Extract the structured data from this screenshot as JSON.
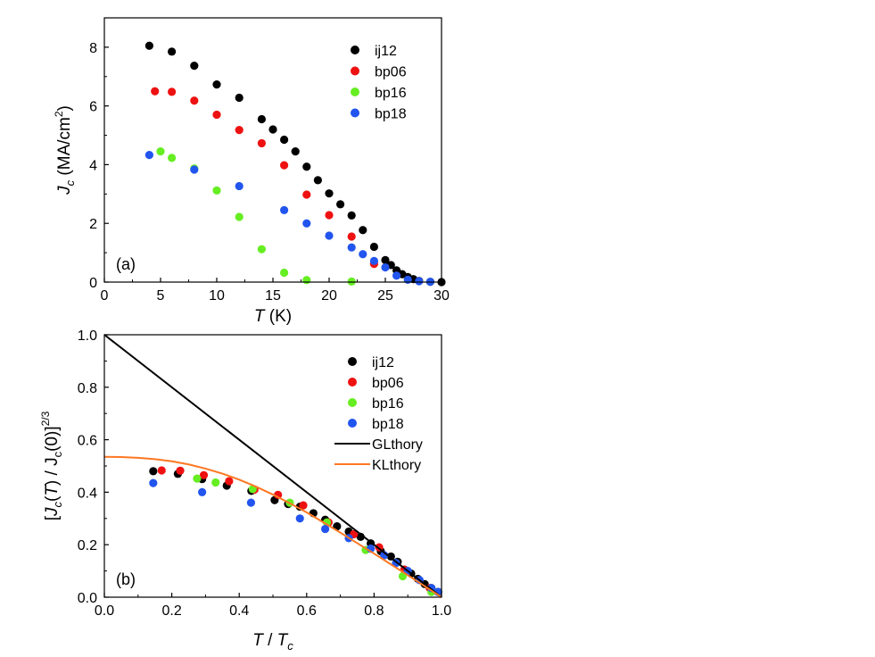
{
  "chart_data": [
    {
      "type": "scatter",
      "panel_label": "(a)",
      "xlabel": "T (K)",
      "ylabel": "Jc (MA/cm2)",
      "xlim": [
        0,
        30
      ],
      "ylim": [
        0,
        9
      ],
      "xticks": [
        0,
        5,
        10,
        15,
        20,
        25,
        30
      ],
      "yticks": [
        0,
        2,
        4,
        6,
        8
      ],
      "legend_position": "top-right",
      "series": [
        {
          "name": "ij12",
          "color": "#000000",
          "x": [
            4,
            6,
            8,
            10,
            12,
            14,
            15,
            16,
            17,
            18,
            19,
            20,
            21,
            22,
            23,
            24,
            25,
            25.5,
            26,
            26.5,
            27,
            27.5,
            28,
            29,
            30
          ],
          "y": [
            8.05,
            7.85,
            7.37,
            6.73,
            6.28,
            5.55,
            5.2,
            4.85,
            4.45,
            3.93,
            3.47,
            3.02,
            2.65,
            2.27,
            1.77,
            1.2,
            0.75,
            0.58,
            0.4,
            0.27,
            0.17,
            0.1,
            0.04,
            0.01,
            0.0
          ]
        },
        {
          "name": "bp06",
          "color": "#ee1111",
          "x": [
            4.5,
            6,
            8,
            10,
            12,
            14,
            16,
            18,
            20,
            22,
            24
          ],
          "y": [
            6.5,
            6.48,
            6.18,
            5.7,
            5.18,
            4.73,
            3.98,
            2.98,
            2.28,
            1.55,
            0.62
          ]
        },
        {
          "name": "bp16",
          "color": "#66ee22",
          "x": [
            5,
            6,
            8,
            10,
            12,
            14,
            16,
            18,
            22
          ],
          "y": [
            4.45,
            4.23,
            3.87,
            3.12,
            2.22,
            1.12,
            0.32,
            0.07,
            0.02
          ]
        },
        {
          "name": "bp18",
          "color": "#2255ee",
          "x": [
            4,
            8,
            12,
            16,
            18,
            20,
            22,
            23,
            24,
            25,
            26,
            27,
            28,
            29
          ],
          "y": [
            4.33,
            3.83,
            3.27,
            2.45,
            2.0,
            1.58,
            1.18,
            0.95,
            0.72,
            0.5,
            0.22,
            0.08,
            0.03,
            0.01
          ]
        }
      ]
    },
    {
      "type": "scatter",
      "panel_label": "(b)",
      "xlabel": "T / Tc",
      "ylabel": "[Jc(T) / Jc(0)]2/3",
      "xlim": [
        0.0,
        1.0
      ],
      "ylim": [
        0.0,
        1.0
      ],
      "xticks": [
        0.0,
        0.2,
        0.4,
        0.6,
        0.8,
        1.0
      ],
      "yticks": [
        0.0,
        0.2,
        0.4,
        0.6,
        0.8,
        1.0
      ],
      "legend_position": "top-right",
      "series": [
        {
          "name": "ij12",
          "color": "#000000",
          "x": [
            0.145,
            0.218,
            0.29,
            0.363,
            0.436,
            0.505,
            0.545,
            0.58,
            0.62,
            0.655,
            0.69,
            0.725,
            0.76,
            0.79,
            0.82,
            0.85,
            0.87,
            0.89,
            0.91,
            0.93,
            0.95,
            0.97,
            0.99
          ],
          "y": [
            0.48,
            0.47,
            0.45,
            0.425,
            0.405,
            0.37,
            0.355,
            0.345,
            0.32,
            0.295,
            0.27,
            0.25,
            0.23,
            0.205,
            0.175,
            0.155,
            0.135,
            0.105,
            0.09,
            0.07,
            0.05,
            0.035,
            0.02
          ]
        },
        {
          "name": "bp06",
          "color": "#ee1111",
          "x": [
            0.17,
            0.225,
            0.295,
            0.37,
            0.445,
            0.515,
            0.59,
            0.665,
            0.74,
            0.815,
            0.89,
            0.965
          ],
          "y": [
            0.483,
            0.482,
            0.465,
            0.442,
            0.41,
            0.39,
            0.35,
            0.285,
            0.24,
            0.19,
            0.105,
            0.035
          ]
        },
        {
          "name": "bp16",
          "color": "#66ee22",
          "x": [
            0.275,
            0.33,
            0.44,
            0.55,
            0.66,
            0.775,
            0.885,
            0.97
          ],
          "y": [
            0.452,
            0.437,
            0.412,
            0.36,
            0.285,
            0.18,
            0.08,
            0.02
          ]
        },
        {
          "name": "bp18",
          "color": "#2255ee",
          "x": [
            0.145,
            0.29,
            0.435,
            0.58,
            0.655,
            0.725,
            0.79,
            0.83,
            0.865,
            0.9,
            0.935,
            0.97,
            0.99
          ],
          "y": [
            0.435,
            0.4,
            0.36,
            0.3,
            0.26,
            0.225,
            0.185,
            0.16,
            0.13,
            0.1,
            0.065,
            0.035,
            0.02
          ]
        },
        {
          "name": "GLthory",
          "color": "#000000",
          "kind": "line",
          "x": [
            0.0,
            1.0
          ],
          "y": [
            1.0,
            0.0
          ]
        },
        {
          "name": "KLthory",
          "color": "#ff7722",
          "kind": "line",
          "x": [
            0.0,
            0.05,
            0.1,
            0.15,
            0.2,
            0.25,
            0.3,
            0.35,
            0.4,
            0.45,
            0.5,
            0.55,
            0.6,
            0.65,
            0.7,
            0.75,
            0.8,
            0.85,
            0.9,
            0.95,
            1.0
          ],
          "y": [
            0.535,
            0.534,
            0.531,
            0.526,
            0.518,
            0.506,
            0.49,
            0.471,
            0.448,
            0.421,
            0.391,
            0.358,
            0.323,
            0.285,
            0.246,
            0.206,
            0.166,
            0.125,
            0.084,
            0.042,
            0.0
          ]
        }
      ]
    }
  ]
}
